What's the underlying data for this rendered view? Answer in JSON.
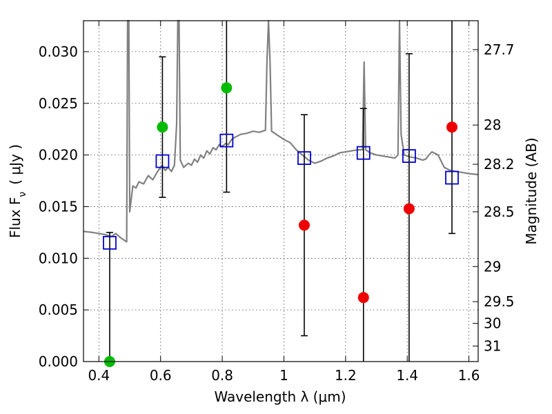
{
  "chart_data": {
    "type": "scatter",
    "title": "",
    "xlabel": "Wavelength  λ (μm)",
    "ylabel_left": "Flux  F",
    "ylabel_left_sub": "ν",
    "ylabel_left_units": "( μJy )",
    "ylabel_right": "Magnitude (AB)",
    "xlim": [
      0.35,
      1.63
    ],
    "ylim": [
      0.0,
      0.033
    ],
    "grid": true,
    "x_ticks": [
      0.4,
      0.6,
      0.8,
      1.0,
      1.2,
      1.4,
      1.6
    ],
    "x_tick_labels": [
      "0.4",
      "0.6",
      "0.8",
      "1",
      "1.2",
      "1.4",
      "1.6"
    ],
    "y_ticks": [
      0.0,
      0.005,
      0.01,
      0.015,
      0.02,
      0.025,
      0.03
    ],
    "y_tick_labels": [
      "0.000",
      "0.005",
      "0.010",
      "0.015",
      "0.020",
      "0.025",
      "0.030"
    ],
    "right_ticks": [
      {
        "label": "27.7",
        "flux": 0.0302
      },
      {
        "label": "28",
        "flux": 0.0229
      },
      {
        "label": "28.2",
        "flux": 0.0191
      },
      {
        "label": "28.5",
        "flux": 0.0145
      },
      {
        "label": "29",
        "flux": 0.0092
      },
      {
        "label": "29.5",
        "flux": 0.0058
      },
      {
        "label": "30",
        "flux": 0.0037
      },
      {
        "label": "31",
        "flux": 0.0015
      }
    ],
    "series": [
      {
        "name": "observed photometry",
        "points": [
          {
            "x": 0.435,
            "y": 0.0,
            "err_low": 0.0,
            "err_high": 0.0125,
            "color": "#00bb00"
          },
          {
            "x": 0.606,
            "y": 0.0227,
            "err_low": 0.0159,
            "err_high": 0.0295,
            "color": "#00bb00"
          },
          {
            "x": 0.814,
            "y": 0.0265,
            "err_low": 0.0164,
            "err_high": 0.033,
            "color": "#00bb00"
          },
          {
            "x": 1.066,
            "y": 0.0132,
            "err_low": 0.0025,
            "err_high": 0.0239,
            "color": "#ee0000"
          },
          {
            "x": 1.258,
            "y": 0.0062,
            "err_low": 0.0,
            "err_high": 0.0245,
            "color": "#ee0000"
          },
          {
            "x": 1.406,
            "y": 0.0148,
            "err_low": 0.0,
            "err_high": 0.0298,
            "color": "#ee0000"
          },
          {
            "x": 1.545,
            "y": 0.0227,
            "err_low": 0.0124,
            "err_high": 0.033,
            "color": "#ee0000"
          }
        ]
      },
      {
        "name": "model photometry",
        "points": [
          {
            "x": 0.435,
            "y": 0.0115
          },
          {
            "x": 0.606,
            "y": 0.0194
          },
          {
            "x": 0.814,
            "y": 0.0214
          },
          {
            "x": 1.066,
            "y": 0.0197
          },
          {
            "x": 1.258,
            "y": 0.0202
          },
          {
            "x": 1.406,
            "y": 0.0199
          },
          {
            "x": 1.545,
            "y": 0.0178
          }
        ]
      },
      {
        "name": "model spectrum",
        "color": "#808080",
        "points": [
          [
            0.35,
            0.0126
          ],
          [
            0.38,
            0.0125
          ],
          [
            0.4,
            0.0124
          ],
          [
            0.42,
            0.0123
          ],
          [
            0.44,
            0.0121
          ],
          [
            0.455,
            0.0124
          ],
          [
            0.47,
            0.012
          ],
          [
            0.485,
            0.0117
          ],
          [
            0.49,
            0.0116
          ],
          [
            0.493,
            0.033
          ],
          [
            0.497,
            0.033
          ],
          [
            0.5,
            0.0145
          ],
          [
            0.51,
            0.017
          ],
          [
            0.52,
            0.0168
          ],
          [
            0.53,
            0.0174
          ],
          [
            0.545,
            0.0172
          ],
          [
            0.56,
            0.018
          ],
          [
            0.575,
            0.0176
          ],
          [
            0.59,
            0.0184
          ],
          [
            0.605,
            0.019
          ],
          [
            0.615,
            0.0185
          ],
          [
            0.625,
            0.0188
          ],
          [
            0.635,
            0.0184
          ],
          [
            0.645,
            0.019
          ],
          [
            0.652,
            0.023
          ],
          [
            0.656,
            0.033
          ],
          [
            0.66,
            0.033
          ],
          [
            0.664,
            0.0195
          ],
          [
            0.675,
            0.0188
          ],
          [
            0.69,
            0.0192
          ],
          [
            0.7,
            0.019
          ],
          [
            0.71,
            0.0196
          ],
          [
            0.72,
            0.0193
          ],
          [
            0.73,
            0.02
          ],
          [
            0.74,
            0.0197
          ],
          [
            0.75,
            0.0204
          ],
          [
            0.76,
            0.0201
          ],
          [
            0.77,
            0.0207
          ],
          [
            0.78,
            0.0205
          ],
          [
            0.79,
            0.021
          ],
          [
            0.8,
            0.0208
          ],
          [
            0.81,
            0.0211
          ],
          [
            0.82,
            0.021
          ],
          [
            0.83,
            0.0215
          ],
          [
            0.84,
            0.0217
          ],
          [
            0.86,
            0.022
          ],
          [
            0.88,
            0.0221
          ],
          [
            0.9,
            0.0223
          ],
          [
            0.92,
            0.0222
          ],
          [
            0.94,
            0.0224
          ],
          [
            0.945,
            0.029
          ],
          [
            0.95,
            0.033
          ],
          [
            0.955,
            0.029
          ],
          [
            0.96,
            0.0223
          ],
          [
            0.98,
            0.0219
          ],
          [
            1.0,
            0.0215
          ],
          [
            1.02,
            0.0212
          ],
          [
            1.04,
            0.0205
          ],
          [
            1.06,
            0.02
          ],
          [
            1.08,
            0.0195
          ],
          [
            1.1,
            0.0192
          ],
          [
            1.12,
            0.0194
          ],
          [
            1.14,
            0.0197
          ],
          [
            1.16,
            0.0199
          ],
          [
            1.18,
            0.0202
          ],
          [
            1.2,
            0.0203
          ],
          [
            1.22,
            0.0204
          ],
          [
            1.24,
            0.0205
          ],
          [
            1.255,
            0.0205
          ],
          [
            1.26,
            0.029
          ],
          [
            1.265,
            0.0205
          ],
          [
            1.28,
            0.0202
          ],
          [
            1.3,
            0.02
          ],
          [
            1.32,
            0.0199
          ],
          [
            1.34,
            0.0198
          ],
          [
            1.36,
            0.0197
          ],
          [
            1.37,
            0.02
          ],
          [
            1.375,
            0.033
          ],
          [
            1.38,
            0.022
          ],
          [
            1.39,
            0.02
          ],
          [
            1.41,
            0.0198
          ],
          [
            1.43,
            0.0197
          ],
          [
            1.45,
            0.0195
          ],
          [
            1.46,
            0.0196
          ],
          [
            1.47,
            0.02
          ],
          [
            1.48,
            0.0203
          ],
          [
            1.5,
            0.02
          ],
          [
            1.52,
            0.0188
          ],
          [
            1.54,
            0.0185
          ],
          [
            1.56,
            0.0184
          ],
          [
            1.58,
            0.0183
          ],
          [
            1.6,
            0.0182
          ],
          [
            1.63,
            0.0181
          ]
        ]
      }
    ]
  }
}
